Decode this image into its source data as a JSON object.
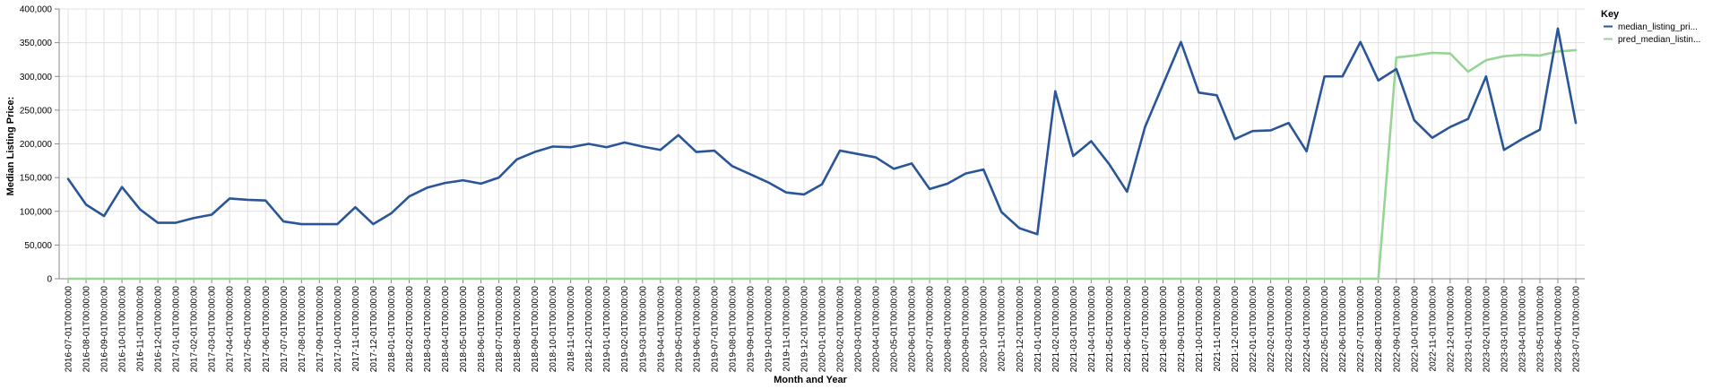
{
  "chart_data": {
    "type": "line",
    "xlabel": "Month and Year",
    "ylabel": "Median Listing Price:",
    "ylim": [
      0,
      400000
    ],
    "y_ticks": [
      "0",
      "50,000",
      "100,000",
      "150,000",
      "200,000",
      "250,000",
      "300,000",
      "350,000",
      "400,000"
    ],
    "grid": true,
    "legend": {
      "title": "Key",
      "placement": "top-right"
    },
    "x": [
      "2016-07-01T00:00:00",
      "2016-08-01T00:00:00",
      "2016-09-01T00:00:00",
      "2016-10-01T00:00:00",
      "2016-11-01T00:00:00",
      "2016-12-01T00:00:00",
      "2017-01-01T00:00:00",
      "2017-02-01T00:00:00",
      "2017-03-01T00:00:00",
      "2017-04-01T00:00:00",
      "2017-05-01T00:00:00",
      "2017-06-01T00:00:00",
      "2017-07-01T00:00:00",
      "2017-08-01T00:00:00",
      "2017-09-01T00:00:00",
      "2017-10-01T00:00:00",
      "2017-11-01T00:00:00",
      "2017-12-01T00:00:00",
      "2018-01-01T00:00:00",
      "2018-02-01T00:00:00",
      "2018-03-01T00:00:00",
      "2018-04-01T00:00:00",
      "2018-05-01T00:00:00",
      "2018-06-01T00:00:00",
      "2018-07-01T00:00:00",
      "2018-08-01T00:00:00",
      "2018-09-01T00:00:00",
      "2018-10-01T00:00:00",
      "2018-11-01T00:00:00",
      "2018-12-01T00:00:00",
      "2019-01-01T00:00:00",
      "2019-02-01T00:00:00",
      "2019-03-01T00:00:00",
      "2019-04-01T00:00:00",
      "2019-05-01T00:00:00",
      "2019-06-01T00:00:00",
      "2019-07-01T00:00:00",
      "2019-08-01T00:00:00",
      "2019-09-01T00:00:00",
      "2019-10-01T00:00:00",
      "2019-11-01T00:00:00",
      "2019-12-01T00:00:00",
      "2020-01-01T00:00:00",
      "2020-02-01T00:00:00",
      "2020-03-01T00:00:00",
      "2020-04-01T00:00:00",
      "2020-05-01T00:00:00",
      "2020-06-01T00:00:00",
      "2020-07-01T00:00:00",
      "2020-08-01T00:00:00",
      "2020-09-01T00:00:00",
      "2020-10-01T00:00:00",
      "2020-11-01T00:00:00",
      "2020-12-01T00:00:00",
      "2021-01-01T00:00:00",
      "2021-02-01T00:00:00",
      "2021-03-01T00:00:00",
      "2021-04-01T00:00:00",
      "2021-05-01T00:00:00",
      "2021-06-01T00:00:00",
      "2021-07-01T00:00:00",
      "2021-08-01T00:00:00",
      "2021-09-01T00:00:00",
      "2021-10-01T00:00:00",
      "2021-11-01T00:00:00",
      "2021-12-01T00:00:00",
      "2022-01-01T00:00:00",
      "2022-02-01T00:00:00",
      "2022-03-01T00:00:00",
      "2022-04-01T00:00:00",
      "2022-05-01T00:00:00",
      "2022-06-01T00:00:00",
      "2022-07-01T00:00:00",
      "2022-08-01T00:00:00",
      "2022-09-01T00:00:00",
      "2022-10-01T00:00:00",
      "2022-11-01T00:00:00",
      "2022-12-01T00:00:00",
      "2023-01-01T00:00:00",
      "2023-02-01T00:00:00",
      "2023-03-01T00:00:00",
      "2023-04-01T00:00:00",
      "2023-05-01T00:00:00",
      "2023-06-01T00:00:00",
      "2023-07-01T00:00:00"
    ],
    "series": [
      {
        "name": "median_listing_pri...",
        "color": "#2a5599",
        "values": [
          148000,
          110000,
          93000,
          136000,
          103000,
          83000,
          83000,
          90000,
          95000,
          119000,
          117000,
          116000,
          85000,
          81000,
          81000,
          81000,
          106000,
          81000,
          97000,
          122000,
          135000,
          142000,
          146000,
          141000,
          150000,
          177000,
          188000,
          196000,
          195000,
          200000,
          195000,
          202000,
          196000,
          191000,
          213000,
          188000,
          190000,
          167000,
          155000,
          143000,
          128000,
          125000,
          140000,
          190000,
          185000,
          180000,
          163000,
          171000,
          133000,
          141000,
          156000,
          162000,
          99000,
          75000,
          66000,
          278000,
          182000,
          204000,
          170000,
          129000,
          225000,
          288000,
          351000,
          276000,
          272000,
          207000,
          219000,
          220000,
          231000,
          189000,
          300000,
          300000,
          351000,
          294000,
          311000,
          235000,
          209000,
          225000,
          237000,
          300000,
          191000,
          207000,
          221000,
          371000,
          231000
        ]
      },
      {
        "name": "pred_median_listin...",
        "color": "#98d594",
        "values": [
          0,
          0,
          0,
          0,
          0,
          0,
          0,
          0,
          0,
          0,
          0,
          0,
          0,
          0,
          0,
          0,
          0,
          0,
          0,
          0,
          0,
          0,
          0,
          0,
          0,
          0,
          0,
          0,
          0,
          0,
          0,
          0,
          0,
          0,
          0,
          0,
          0,
          0,
          0,
          0,
          0,
          0,
          0,
          0,
          0,
          0,
          0,
          0,
          0,
          0,
          0,
          0,
          0,
          0,
          0,
          0,
          0,
          0,
          0,
          0,
          0,
          0,
          0,
          0,
          0,
          0,
          0,
          0,
          0,
          0,
          0,
          0,
          0,
          0,
          328000,
          331000,
          335000,
          334000,
          307000,
          324000,
          330000,
          332000,
          331000,
          337000,
          339000
        ]
      }
    ]
  }
}
